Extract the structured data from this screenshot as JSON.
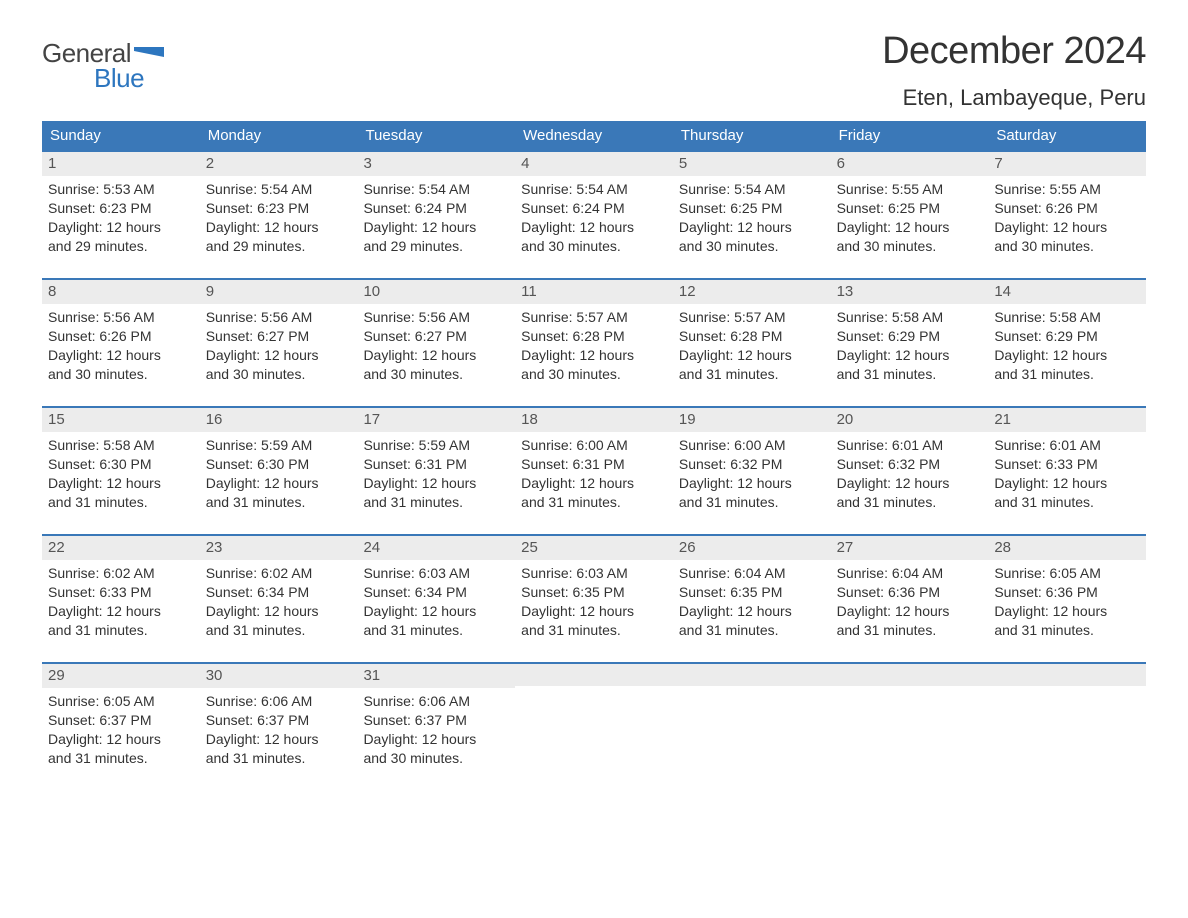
{
  "brand": {
    "word1": "General",
    "word2": "Blue",
    "flag_color": "#2d76bf",
    "text_color_gray": "#444444"
  },
  "header": {
    "month_title": "December 2024",
    "location": "Eten, Lambayeque, Peru"
  },
  "colors": {
    "header_bg": "#3a78b8",
    "header_text": "#ffffff",
    "row_border": "#3a78b8",
    "daynum_bg": "#ececec",
    "daynum_text": "#555555",
    "body_text": "#333333",
    "page_bg": "#ffffff"
  },
  "typography": {
    "month_title_fontsize": 38,
    "location_fontsize": 22,
    "weekday_fontsize": 15,
    "day_fontsize": 14,
    "logo_fontsize": 26
  },
  "calendar": {
    "weekdays": [
      "Sunday",
      "Monday",
      "Tuesday",
      "Wednesday",
      "Thursday",
      "Friday",
      "Saturday"
    ],
    "weeks": [
      [
        {
          "day": "1",
          "sunrise": "Sunrise: 5:53 AM",
          "sunset": "Sunset: 6:23 PM",
          "d1": "Daylight: 12 hours",
          "d2": "and 29 minutes."
        },
        {
          "day": "2",
          "sunrise": "Sunrise: 5:54 AM",
          "sunset": "Sunset: 6:23 PM",
          "d1": "Daylight: 12 hours",
          "d2": "and 29 minutes."
        },
        {
          "day": "3",
          "sunrise": "Sunrise: 5:54 AM",
          "sunset": "Sunset: 6:24 PM",
          "d1": "Daylight: 12 hours",
          "d2": "and 29 minutes."
        },
        {
          "day": "4",
          "sunrise": "Sunrise: 5:54 AM",
          "sunset": "Sunset: 6:24 PM",
          "d1": "Daylight: 12 hours",
          "d2": "and 30 minutes."
        },
        {
          "day": "5",
          "sunrise": "Sunrise: 5:54 AM",
          "sunset": "Sunset: 6:25 PM",
          "d1": "Daylight: 12 hours",
          "d2": "and 30 minutes."
        },
        {
          "day": "6",
          "sunrise": "Sunrise: 5:55 AM",
          "sunset": "Sunset: 6:25 PM",
          "d1": "Daylight: 12 hours",
          "d2": "and 30 minutes."
        },
        {
          "day": "7",
          "sunrise": "Sunrise: 5:55 AM",
          "sunset": "Sunset: 6:26 PM",
          "d1": "Daylight: 12 hours",
          "d2": "and 30 minutes."
        }
      ],
      [
        {
          "day": "8",
          "sunrise": "Sunrise: 5:56 AM",
          "sunset": "Sunset: 6:26 PM",
          "d1": "Daylight: 12 hours",
          "d2": "and 30 minutes."
        },
        {
          "day": "9",
          "sunrise": "Sunrise: 5:56 AM",
          "sunset": "Sunset: 6:27 PM",
          "d1": "Daylight: 12 hours",
          "d2": "and 30 minutes."
        },
        {
          "day": "10",
          "sunrise": "Sunrise: 5:56 AM",
          "sunset": "Sunset: 6:27 PM",
          "d1": "Daylight: 12 hours",
          "d2": "and 30 minutes."
        },
        {
          "day": "11",
          "sunrise": "Sunrise: 5:57 AM",
          "sunset": "Sunset: 6:28 PM",
          "d1": "Daylight: 12 hours",
          "d2": "and 30 minutes."
        },
        {
          "day": "12",
          "sunrise": "Sunrise: 5:57 AM",
          "sunset": "Sunset: 6:28 PM",
          "d1": "Daylight: 12 hours",
          "d2": "and 31 minutes."
        },
        {
          "day": "13",
          "sunrise": "Sunrise: 5:58 AM",
          "sunset": "Sunset: 6:29 PM",
          "d1": "Daylight: 12 hours",
          "d2": "and 31 minutes."
        },
        {
          "day": "14",
          "sunrise": "Sunrise: 5:58 AM",
          "sunset": "Sunset: 6:29 PM",
          "d1": "Daylight: 12 hours",
          "d2": "and 31 minutes."
        }
      ],
      [
        {
          "day": "15",
          "sunrise": "Sunrise: 5:58 AM",
          "sunset": "Sunset: 6:30 PM",
          "d1": "Daylight: 12 hours",
          "d2": "and 31 minutes."
        },
        {
          "day": "16",
          "sunrise": "Sunrise: 5:59 AM",
          "sunset": "Sunset: 6:30 PM",
          "d1": "Daylight: 12 hours",
          "d2": "and 31 minutes."
        },
        {
          "day": "17",
          "sunrise": "Sunrise: 5:59 AM",
          "sunset": "Sunset: 6:31 PM",
          "d1": "Daylight: 12 hours",
          "d2": "and 31 minutes."
        },
        {
          "day": "18",
          "sunrise": "Sunrise: 6:00 AM",
          "sunset": "Sunset: 6:31 PM",
          "d1": "Daylight: 12 hours",
          "d2": "and 31 minutes."
        },
        {
          "day": "19",
          "sunrise": "Sunrise: 6:00 AM",
          "sunset": "Sunset: 6:32 PM",
          "d1": "Daylight: 12 hours",
          "d2": "and 31 minutes."
        },
        {
          "day": "20",
          "sunrise": "Sunrise: 6:01 AM",
          "sunset": "Sunset: 6:32 PM",
          "d1": "Daylight: 12 hours",
          "d2": "and 31 minutes."
        },
        {
          "day": "21",
          "sunrise": "Sunrise: 6:01 AM",
          "sunset": "Sunset: 6:33 PM",
          "d1": "Daylight: 12 hours",
          "d2": "and 31 minutes."
        }
      ],
      [
        {
          "day": "22",
          "sunrise": "Sunrise: 6:02 AM",
          "sunset": "Sunset: 6:33 PM",
          "d1": "Daylight: 12 hours",
          "d2": "and 31 minutes."
        },
        {
          "day": "23",
          "sunrise": "Sunrise: 6:02 AM",
          "sunset": "Sunset: 6:34 PM",
          "d1": "Daylight: 12 hours",
          "d2": "and 31 minutes."
        },
        {
          "day": "24",
          "sunrise": "Sunrise: 6:03 AM",
          "sunset": "Sunset: 6:34 PM",
          "d1": "Daylight: 12 hours",
          "d2": "and 31 minutes."
        },
        {
          "day": "25",
          "sunrise": "Sunrise: 6:03 AM",
          "sunset": "Sunset: 6:35 PM",
          "d1": "Daylight: 12 hours",
          "d2": "and 31 minutes."
        },
        {
          "day": "26",
          "sunrise": "Sunrise: 6:04 AM",
          "sunset": "Sunset: 6:35 PM",
          "d1": "Daylight: 12 hours",
          "d2": "and 31 minutes."
        },
        {
          "day": "27",
          "sunrise": "Sunrise: 6:04 AM",
          "sunset": "Sunset: 6:36 PM",
          "d1": "Daylight: 12 hours",
          "d2": "and 31 minutes."
        },
        {
          "day": "28",
          "sunrise": "Sunrise: 6:05 AM",
          "sunset": "Sunset: 6:36 PM",
          "d1": "Daylight: 12 hours",
          "d2": "and 31 minutes."
        }
      ],
      [
        {
          "day": "29",
          "sunrise": "Sunrise: 6:05 AM",
          "sunset": "Sunset: 6:37 PM",
          "d1": "Daylight: 12 hours",
          "d2": "and 31 minutes."
        },
        {
          "day": "30",
          "sunrise": "Sunrise: 6:06 AM",
          "sunset": "Sunset: 6:37 PM",
          "d1": "Daylight: 12 hours",
          "d2": "and 31 minutes."
        },
        {
          "day": "31",
          "sunrise": "Sunrise: 6:06 AM",
          "sunset": "Sunset: 6:37 PM",
          "d1": "Daylight: 12 hours",
          "d2": "and 30 minutes."
        },
        {
          "empty": true
        },
        {
          "empty": true
        },
        {
          "empty": true
        },
        {
          "empty": true
        }
      ]
    ]
  }
}
